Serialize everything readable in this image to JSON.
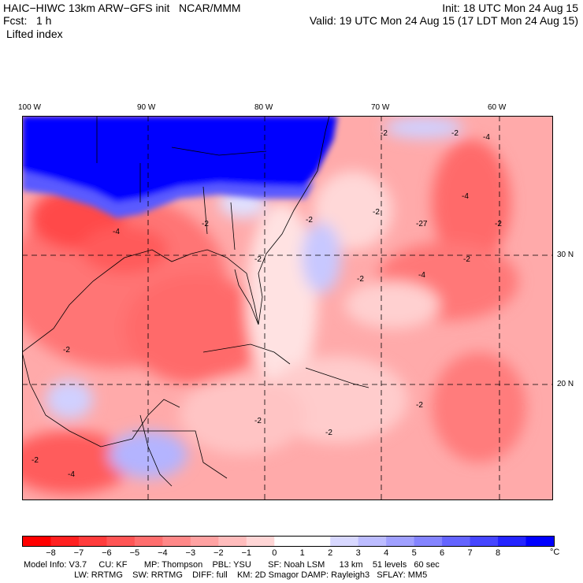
{
  "header": {
    "model_line": "HAIC−HIWC 13km ARW−GFS init   NCAR/MMM",
    "init_line": "Init: 18 UTC Mon 24 Aug 15",
    "fcst_line": "Fcst:   1 h",
    "valid_line": "Valid: 19 UTC Mon 24 Aug 15 (17 LDT Mon 24 Aug 15)",
    "field_label": "Lifted index"
  },
  "map": {
    "lon_labels": [
      "100 W",
      "90 W",
      "80 W",
      "70 W",
      "60 W"
    ],
    "lat_labels": [
      "30 N",
      "20 N"
    ],
    "contour_labels": [
      "-2",
      "-4",
      "-2",
      "-2",
      "-2",
      "-27",
      "-2",
      "-4",
      "-2",
      "-2",
      "-4",
      "-2",
      "-2",
      "-2",
      "-4",
      "-2",
      "-2",
      "-2",
      "-2",
      "-4"
    ]
  },
  "colorbar": {
    "unit": "°C",
    "colors": [
      "#ff0000",
      "#ff2020",
      "#ff3c3c",
      "#ff5555",
      "#ff6e6e",
      "#ff8888",
      "#ffa2a2",
      "#ffbcbc",
      "#ffd6d6",
      "#ffffff",
      "#ffffff",
      "#d8d8ff",
      "#bcbcff",
      "#a0a0ff",
      "#8484ff",
      "#6464ff",
      "#4646ff",
      "#2424ff",
      "#0000ff"
    ],
    "tick_labels": [
      "−8",
      "−7",
      "−6",
      "−5",
      "−4",
      "−3",
      "−2",
      "−1",
      "0",
      "1",
      "2",
      "3",
      "4",
      "5",
      "6",
      "7",
      "8"
    ]
  },
  "footer": {
    "line1": "Model Info: V3.7     CU: KF       MP: Thompson    PBL: YSU       SF: Noah LSM      13 km    51 levels   60 sec",
    "line2": "                     LW: RRTMG    SW: RRTMG    DIFF: full    KM: 2D Smagor DAMP: Rayleigh3   SFLAY: MM5"
  }
}
